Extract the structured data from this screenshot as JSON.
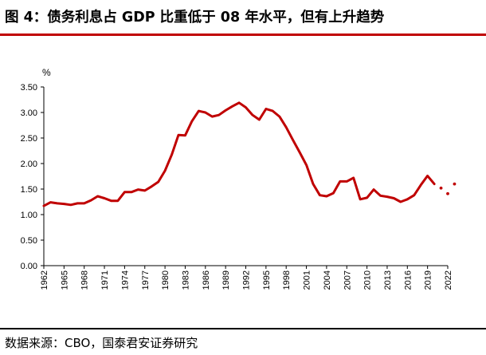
{
  "title": "图 4：债务利息占 GDP 比重低于 08 年水平，但有上升趋势",
  "source": "数据来源：CBO，国泰君安证券研究",
  "colors": {
    "accent": "#c00000",
    "series": "#c00000",
    "axis": "#000000"
  },
  "chart_data": {
    "type": "line",
    "title": "图 4：债务利息占 GDP 比重低于 08 年水平，但有上升趋势",
    "xlabel": "",
    "ylabel": "%",
    "ylim": [
      0,
      3.5
    ],
    "xlim": [
      1962,
      2022
    ],
    "yticks": [
      "0.00",
      "0.50",
      "1.00",
      "1.50",
      "2.00",
      "2.50",
      "3.00",
      "3.50"
    ],
    "xticks": [
      "1962",
      "1965",
      "1968",
      "1971",
      "1974",
      "1977",
      "1980",
      "1983",
      "1986",
      "1989",
      "1992",
      "1995",
      "1998",
      "2001",
      "2004",
      "2007",
      "2010",
      "2013",
      "2016",
      "2019",
      "2022"
    ],
    "grid": false,
    "legend": "none",
    "series": [
      {
        "style": "solid",
        "x": [
          1962,
          1963,
          1964,
          1965,
          1966,
          1967,
          1968,
          1969,
          1970,
          1971,
          1972,
          1973,
          1974,
          1975,
          1976,
          1977,
          1978,
          1979,
          1980,
          1981,
          1982,
          1983,
          1984,
          1985,
          1986,
          1987,
          1988,
          1989,
          1990,
          1991,
          1992,
          1993,
          1994,
          1995,
          1996,
          1997,
          1998,
          1999,
          2000,
          2001,
          2002,
          2003,
          2004,
          2005,
          2006,
          2007,
          2008,
          2009,
          2010,
          2011,
          2012,
          2013,
          2014,
          2015,
          2016,
          2017,
          2018,
          2019,
          2020
        ],
        "values": [
          1.17,
          1.24,
          1.22,
          1.21,
          1.19,
          1.22,
          1.22,
          1.28,
          1.36,
          1.32,
          1.27,
          1.27,
          1.44,
          1.44,
          1.49,
          1.47,
          1.55,
          1.64,
          1.86,
          2.17,
          2.56,
          2.55,
          2.83,
          3.03,
          3.0,
          2.92,
          2.95,
          3.04,
          3.12,
          3.19,
          3.1,
          2.95,
          2.86,
          3.07,
          3.03,
          2.92,
          2.71,
          2.46,
          2.22,
          1.97,
          1.6,
          1.38,
          1.36,
          1.42,
          1.65,
          1.65,
          1.72,
          1.3,
          1.33,
          1.49,
          1.37,
          1.35,
          1.32,
          1.25,
          1.3,
          1.38,
          1.58,
          1.76,
          1.6
        ]
      },
      {
        "style": "dotted",
        "x": [
          2021,
          2022,
          2023
        ],
        "values": [
          1.52,
          1.41,
          1.6
        ]
      }
    ]
  }
}
